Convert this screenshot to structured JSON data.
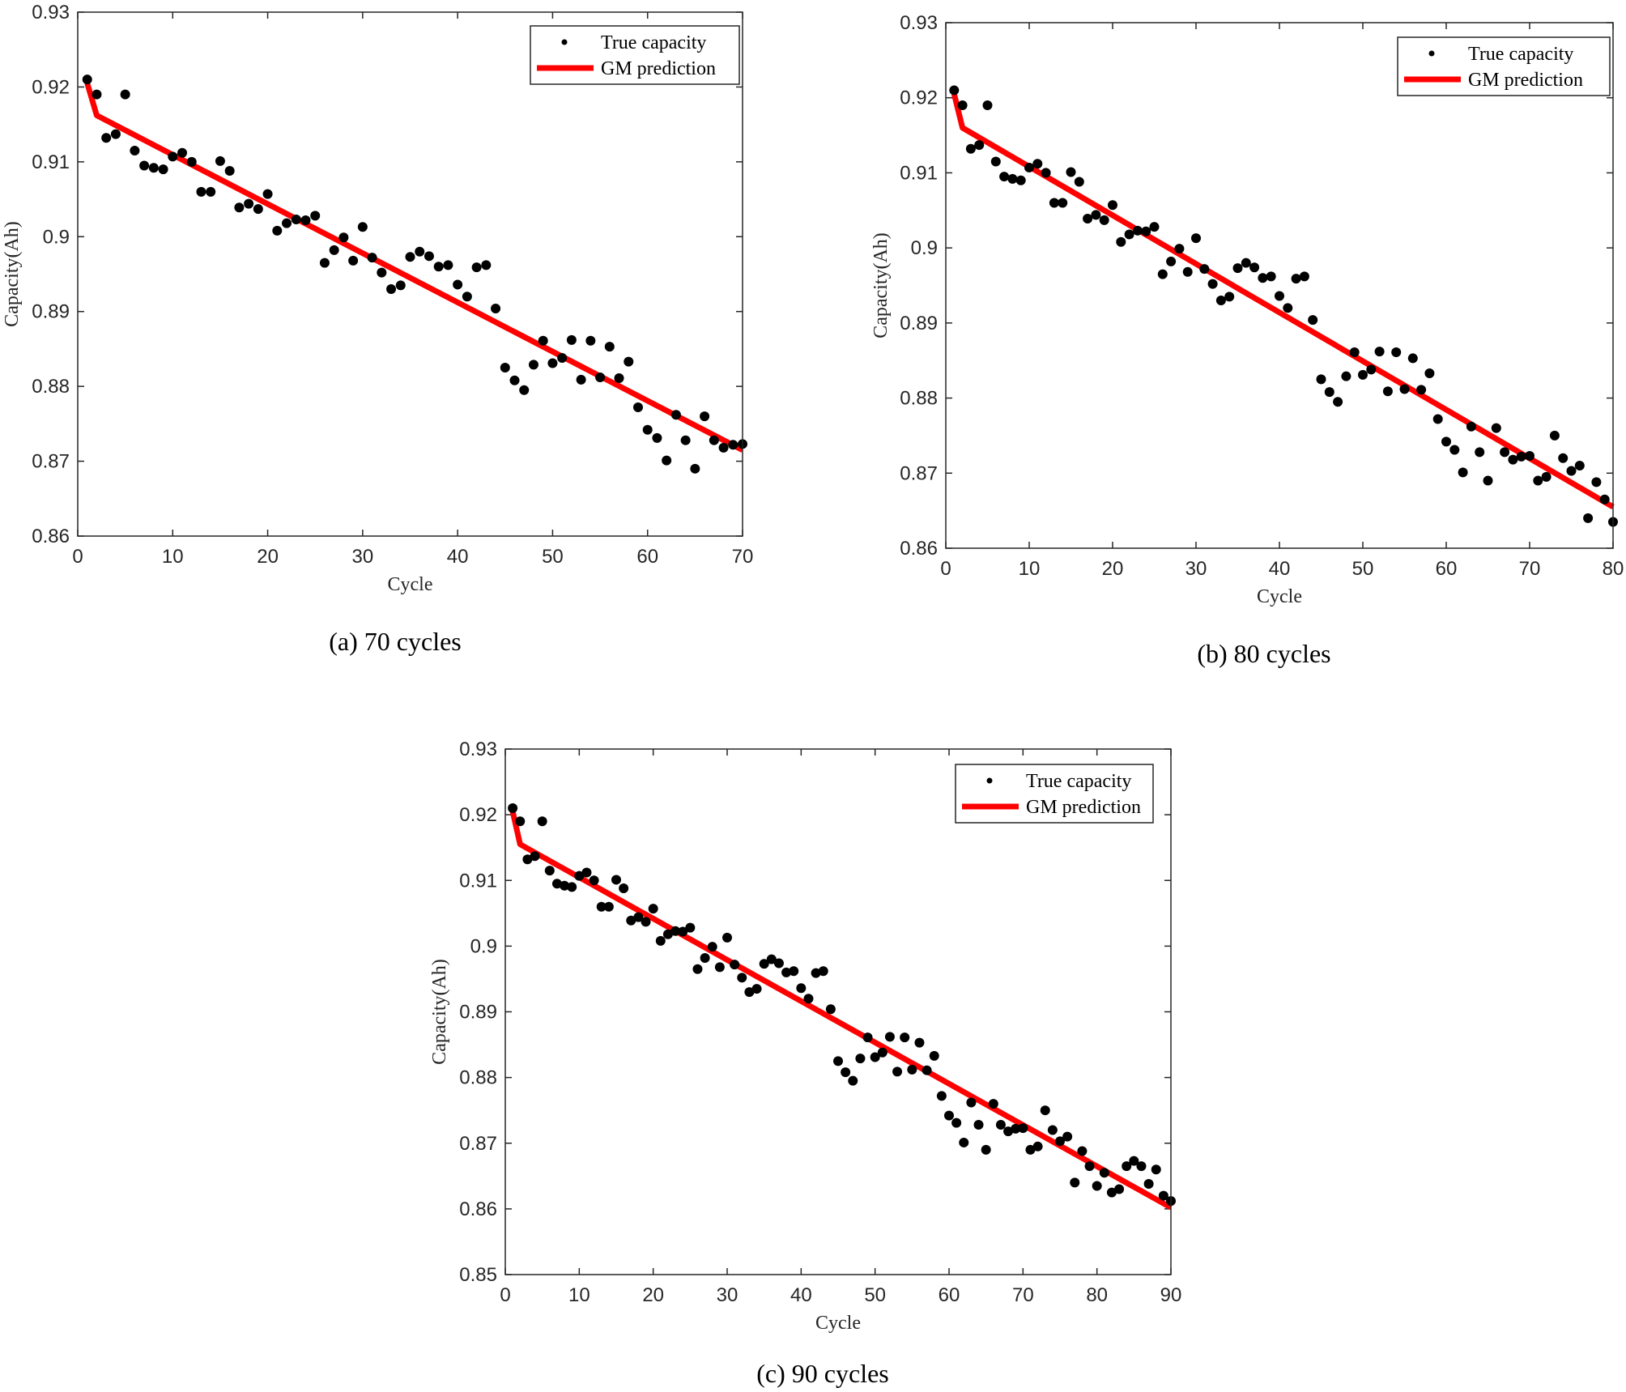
{
  "chart_data": [
    {
      "type": "scatter",
      "caption": "(a) 70 cycles",
      "xlabel": "Cycle",
      "ylabel": "Capacity(Ah)",
      "xlim": [
        0,
        70
      ],
      "ylim": [
        0.86,
        0.93
      ],
      "xticks": [
        0,
        10,
        20,
        30,
        40,
        50,
        60,
        70
      ],
      "xtick_labels": [
        "0",
        "10",
        "20",
        "30",
        "40",
        "50",
        "60",
        "70"
      ],
      "yticks": [
        0.86,
        0.87,
        0.88,
        0.89,
        0.9,
        0.91,
        0.92,
        0.93
      ],
      "ytick_labels": [
        "0.86",
        "0.87",
        "0.88",
        "0.89",
        "0.9",
        "0.91",
        "0.92",
        "0.93"
      ],
      "legend_position": "top-right",
      "series": [
        {
          "name": "True capacity",
          "style": "markers",
          "color": "#000000",
          "x": [
            1,
            2,
            3,
            4,
            5,
            6,
            7,
            8,
            9,
            10,
            11,
            12,
            13,
            14,
            15,
            16,
            17,
            18,
            19,
            20,
            21,
            22,
            23,
            24,
            25,
            26,
            27,
            28,
            29,
            30,
            31,
            32,
            33,
            34,
            35,
            36,
            37,
            38,
            39,
            40,
            41,
            42,
            43,
            44,
            45,
            46,
            47,
            48,
            49,
            50,
            51,
            52,
            53,
            54,
            55,
            56,
            57,
            58,
            59,
            60,
            61,
            62,
            63,
            64,
            65,
            66,
            67,
            68,
            69,
            70
          ],
          "y": [
            0.921,
            0.919,
            0.9132,
            0.9137,
            0.919,
            0.9115,
            0.9095,
            0.9092,
            0.909,
            0.9107,
            0.9112,
            0.91,
            0.906,
            0.906,
            0.9101,
            0.9088,
            0.9039,
            0.9044,
            0.9037,
            0.9057,
            0.9008,
            0.9018,
            0.9023,
            0.9022,
            0.9028,
            0.8965,
            0.8982,
            0.8999,
            0.8968,
            0.9013,
            0.8972,
            0.8952,
            0.893,
            0.8935,
            0.8973,
            0.898,
            0.8974,
            0.896,
            0.8962,
            0.8936,
            0.892,
            0.8959,
            0.8962,
            0.8904,
            0.8825,
            0.8808,
            0.8795,
            0.8829,
            0.8861,
            0.8831,
            0.8838,
            0.8862,
            0.8809,
            0.8861,
            0.8812,
            0.8853,
            0.8811,
            0.8833,
            0.8772,
            0.8742,
            0.8731,
            0.8701,
            0.8762,
            0.8728,
            0.869,
            0.876,
            0.8728,
            0.8718,
            0.8722,
            0.8723
          ]
        },
        {
          "name": "GM prediction",
          "style": "line",
          "color": "#ff0000",
          "x": [
            1,
            2,
            70
          ],
          "y": [
            0.9205,
            0.9162,
            0.8715
          ]
        }
      ]
    },
    {
      "type": "scatter",
      "caption": "(b) 80 cycles",
      "xlabel": "Cycle",
      "ylabel": "Capacity(Ah)",
      "xlim": [
        0,
        80
      ],
      "ylim": [
        0.86,
        0.93
      ],
      "xticks": [
        0,
        10,
        20,
        30,
        40,
        50,
        60,
        70,
        80
      ],
      "xtick_labels": [
        "0",
        "10",
        "20",
        "30",
        "40",
        "50",
        "60",
        "70",
        "80"
      ],
      "yticks": [
        0.86,
        0.87,
        0.88,
        0.89,
        0.9,
        0.91,
        0.92,
        0.93
      ],
      "ytick_labels": [
        "0.86",
        "0.87",
        "0.88",
        "0.89",
        "0.9",
        "0.91",
        "0.92",
        "0.93"
      ],
      "legend_position": "top-right",
      "series": [
        {
          "name": "True capacity",
          "style": "markers",
          "color": "#000000",
          "x": [
            1,
            2,
            3,
            4,
            5,
            6,
            7,
            8,
            9,
            10,
            11,
            12,
            13,
            14,
            15,
            16,
            17,
            18,
            19,
            20,
            21,
            22,
            23,
            24,
            25,
            26,
            27,
            28,
            29,
            30,
            31,
            32,
            33,
            34,
            35,
            36,
            37,
            38,
            39,
            40,
            41,
            42,
            43,
            44,
            45,
            46,
            47,
            48,
            49,
            50,
            51,
            52,
            53,
            54,
            55,
            56,
            57,
            58,
            59,
            60,
            61,
            62,
            63,
            64,
            65,
            66,
            67,
            68,
            69,
            70,
            71,
            72,
            73,
            74,
            75,
            76,
            77,
            78,
            79,
            80
          ],
          "y": [
            0.921,
            0.919,
            0.9132,
            0.9137,
            0.919,
            0.9115,
            0.9095,
            0.9092,
            0.909,
            0.9107,
            0.9112,
            0.91,
            0.906,
            0.906,
            0.9101,
            0.9088,
            0.9039,
            0.9044,
            0.9037,
            0.9057,
            0.9008,
            0.9018,
            0.9023,
            0.9022,
            0.9028,
            0.8965,
            0.8982,
            0.8999,
            0.8968,
            0.9013,
            0.8972,
            0.8952,
            0.893,
            0.8935,
            0.8973,
            0.898,
            0.8974,
            0.896,
            0.8962,
            0.8936,
            0.892,
            0.8959,
            0.8962,
            0.8904,
            0.8825,
            0.8808,
            0.8795,
            0.8829,
            0.8861,
            0.8831,
            0.8838,
            0.8862,
            0.8809,
            0.8861,
            0.8812,
            0.8853,
            0.8811,
            0.8833,
            0.8772,
            0.8742,
            0.8731,
            0.8701,
            0.8762,
            0.8728,
            0.869,
            0.876,
            0.8728,
            0.8718,
            0.8722,
            0.8723,
            0.869,
            0.8695,
            0.875,
            0.872,
            0.8703,
            0.871,
            0.864,
            0.8688,
            0.8665,
            0.8635
          ]
        },
        {
          "name": "GM prediction",
          "style": "line",
          "color": "#ff0000",
          "x": [
            1,
            2,
            80
          ],
          "y": [
            0.9205,
            0.916,
            0.8655
          ]
        }
      ]
    },
    {
      "type": "scatter",
      "caption": "(c) 90 cycles",
      "xlabel": "Cycle",
      "ylabel": "Capacity(Ah)",
      "xlim": [
        0,
        90
      ],
      "ylim": [
        0.85,
        0.93
      ],
      "xticks": [
        0,
        10,
        20,
        30,
        40,
        50,
        60,
        70,
        80,
        90
      ],
      "xtick_labels": [
        "0",
        "10",
        "20",
        "30",
        "40",
        "50",
        "60",
        "70",
        "80",
        "90"
      ],
      "yticks": [
        0.85,
        0.86,
        0.87,
        0.88,
        0.89,
        0.9,
        0.91,
        0.92,
        0.93
      ],
      "ytick_labels": [
        "0.85",
        "0.86",
        "0.87",
        "0.88",
        "0.89",
        "0.9",
        "0.91",
        "0.92",
        "0.93"
      ],
      "legend_position": "top-right",
      "series": [
        {
          "name": "True capacity",
          "style": "markers",
          "color": "#000000",
          "x": [
            1,
            2,
            3,
            4,
            5,
            6,
            7,
            8,
            9,
            10,
            11,
            12,
            13,
            14,
            15,
            16,
            17,
            18,
            19,
            20,
            21,
            22,
            23,
            24,
            25,
            26,
            27,
            28,
            29,
            30,
            31,
            32,
            33,
            34,
            35,
            36,
            37,
            38,
            39,
            40,
            41,
            42,
            43,
            44,
            45,
            46,
            47,
            48,
            49,
            50,
            51,
            52,
            53,
            54,
            55,
            56,
            57,
            58,
            59,
            60,
            61,
            62,
            63,
            64,
            65,
            66,
            67,
            68,
            69,
            70,
            71,
            72,
            73,
            74,
            75,
            76,
            77,
            78,
            79,
            80,
            81,
            82,
            83,
            84,
            85,
            86,
            87,
            88,
            89,
            90
          ],
          "y": [
            0.921,
            0.919,
            0.9132,
            0.9137,
            0.919,
            0.9115,
            0.9095,
            0.9092,
            0.909,
            0.9107,
            0.9112,
            0.91,
            0.906,
            0.906,
            0.9101,
            0.9088,
            0.9039,
            0.9044,
            0.9037,
            0.9057,
            0.9008,
            0.9018,
            0.9023,
            0.9022,
            0.9028,
            0.8965,
            0.8982,
            0.8999,
            0.8968,
            0.9013,
            0.8972,
            0.8952,
            0.893,
            0.8935,
            0.8973,
            0.898,
            0.8974,
            0.896,
            0.8962,
            0.8936,
            0.892,
            0.8959,
            0.8962,
            0.8904,
            0.8825,
            0.8808,
            0.8795,
            0.8829,
            0.8861,
            0.8831,
            0.8838,
            0.8862,
            0.8809,
            0.8861,
            0.8812,
            0.8853,
            0.8811,
            0.8833,
            0.8772,
            0.8742,
            0.8731,
            0.8701,
            0.8762,
            0.8728,
            0.869,
            0.876,
            0.8728,
            0.8718,
            0.8722,
            0.8723,
            0.869,
            0.8695,
            0.875,
            0.872,
            0.8703,
            0.871,
            0.864,
            0.8688,
            0.8665,
            0.8635,
            0.8655,
            0.8625,
            0.863,
            0.8665,
            0.8673,
            0.8665,
            0.8638,
            0.866,
            0.862,
            0.8612
          ]
        },
        {
          "name": "GM prediction",
          "style": "line",
          "color": "#ff0000",
          "x": [
            1,
            2,
            90
          ],
          "y": [
            0.9205,
            0.9155,
            0.8602
          ]
        }
      ]
    }
  ]
}
